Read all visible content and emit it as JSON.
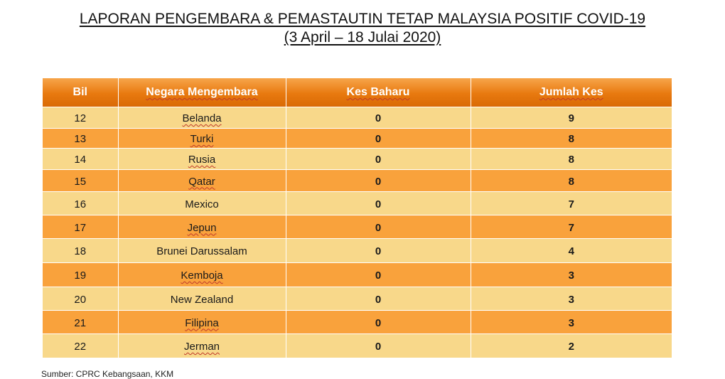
{
  "title": {
    "line1": "LAPORAN PENGEMBARA & PEMASTAUTIN TETAP MALAYSIA POSITIF COVID-19",
    "line2": "(3 April – 18 Julai 2020)"
  },
  "table": {
    "headers": [
      "Bil",
      "Negara Mengembara",
      "Kes Baharu",
      "Jumlah Kes"
    ],
    "rows": [
      {
        "bil": "12",
        "negara": "Belanda",
        "baharu": "0",
        "jumlah": "9"
      },
      {
        "bil": "13",
        "negara": "Turki",
        "baharu": "0",
        "jumlah": "8"
      },
      {
        "bil": "14",
        "negara": "Rusia",
        "baharu": "0",
        "jumlah": "8"
      },
      {
        "bil": "15",
        "negara": "Qatar",
        "baharu": "0",
        "jumlah": "8"
      },
      {
        "bil": "16",
        "negara": "Mexico",
        "baharu": "0",
        "jumlah": "7"
      },
      {
        "bil": "17",
        "negara": "Jepun",
        "baharu": "0",
        "jumlah": "7"
      },
      {
        "bil": "18",
        "negara": "Brunei Darussalam",
        "baharu": "0",
        "jumlah": "4"
      },
      {
        "bil": "19",
        "negara": "Kemboja",
        "baharu": "0",
        "jumlah": "3"
      },
      {
        "bil": "20",
        "negara": "New Zealand",
        "baharu": "0",
        "jumlah": "3"
      },
      {
        "bil": "21",
        "negara": "Filipina",
        "baharu": "0",
        "jumlah": "3"
      },
      {
        "bil": "22",
        "negara": "Jerman",
        "baharu": "0",
        "jumlah": "2"
      }
    ]
  },
  "source": "Sumber: CPRC Kebangsaan, KKM",
  "colors": {
    "header_orange": "#e8790f",
    "row_light": "#f8d88a",
    "row_dark": "#f9a23c"
  }
}
